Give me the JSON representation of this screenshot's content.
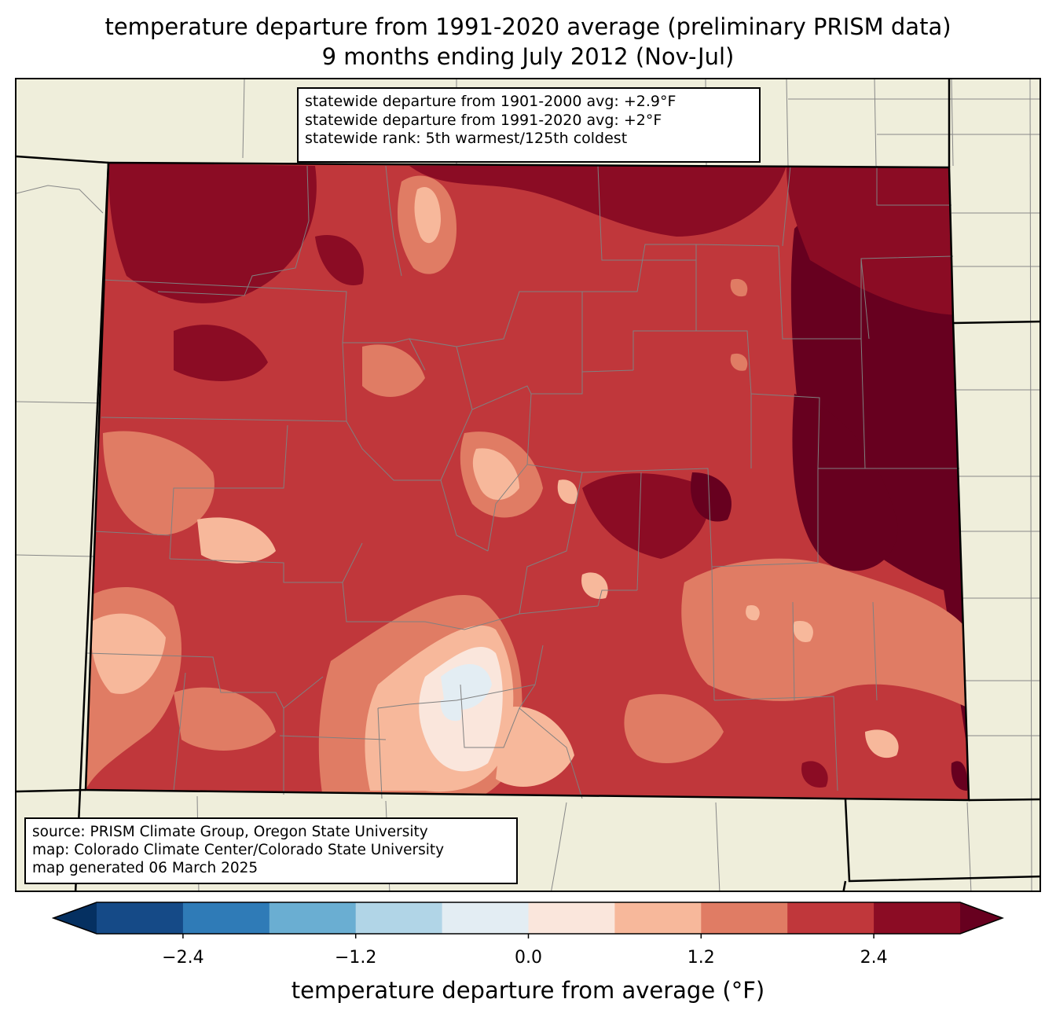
{
  "title": {
    "line1": "temperature departure from 1991-2020 average (preliminary PRISM data)",
    "line2": "9 months ending July 2012 (Nov-Jul)"
  },
  "stats": {
    "line1": "statewide departure from 1901-2000 avg: +2.9°F",
    "line2": "statewide departure from 1991-2020 avg: +2°F",
    "line3": "statewide rank: 5th warmest/125th coldest"
  },
  "credits": {
    "line1": "source: PRISM Climate Group, Oregon State University",
    "line2": "map: Colorado Climate Center/Colorado State University",
    "line3": "map generated 06 March 2025"
  },
  "colorbar": {
    "label": "temperature departure from average (°F)",
    "ticks": [
      {
        "value": -2.4,
        "label": "−2.4"
      },
      {
        "value": -1.2,
        "label": "−1.2"
      },
      {
        "value": 0.0,
        "label": "0.0"
      },
      {
        "value": 1.2,
        "label": "1.2"
      },
      {
        "value": 2.4,
        "label": "2.4"
      }
    ],
    "bin_edges": [
      -3.0,
      -2.4,
      -1.8,
      -1.2,
      -0.6,
      0.0,
      0.6,
      1.2,
      1.8,
      2.4,
      3.0
    ],
    "under_color": "#053061",
    "over_color": "#67001f",
    "colors": [
      "#154a87",
      "#2f7bb7",
      "#6aaed2",
      "#b1d5e7",
      "#e3edf3",
      "#fae6dc",
      "#f7b89b",
      "#e07c64",
      "#c0373b",
      "#8b0c24"
    ]
  },
  "map": {
    "land_color": "#efeedb",
    "region": "Colorado"
  }
}
